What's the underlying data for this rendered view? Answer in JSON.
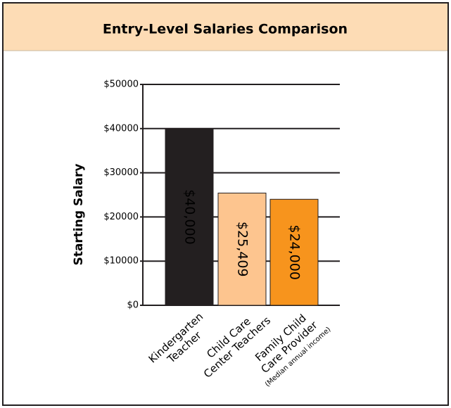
{
  "chart_data": {
    "type": "bar",
    "title": "Entry-Level Salaries Comparison",
    "y_label": "Starting Salary",
    "categories": [
      [
        "Kindergarten",
        "Teacher"
      ],
      [
        "Child Care",
        "Center Teachers"
      ],
      [
        "Family Child",
        "Care Provider",
        "(Median annual income)"
      ]
    ],
    "values": [
      40000,
      25409,
      24000
    ],
    "value_labels": [
      "$40,000",
      "$25,409",
      "$24,000"
    ],
    "colors": [
      "#231f20",
      "#fdc58f",
      "#f7941d"
    ],
    "label_colors": [
      "#ffffff",
      "#000000",
      "#000000"
    ],
    "ylim": [
      0,
      50000
    ],
    "yticks": [
      {
        "value": 0,
        "label": "$0"
      },
      {
        "value": 10000,
        "label": "$10000"
      },
      {
        "value": 20000,
        "label": "$20000"
      },
      {
        "value": 30000,
        "label": "$30000"
      },
      {
        "value": 40000,
        "label": "$40000"
      },
      {
        "value": 50000,
        "label": "$50000"
      }
    ],
    "grid": true
  }
}
